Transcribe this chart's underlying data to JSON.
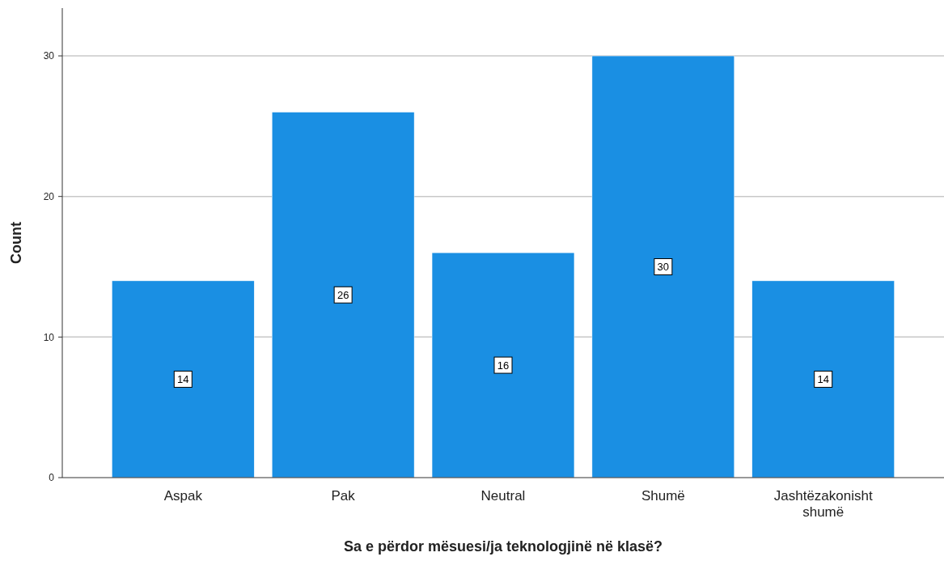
{
  "chart_data": {
    "type": "bar",
    "xlabel": "Sa e përdor mësuesi/ja teknologjinë në klasë?",
    "ylabel": "Count",
    "categories": [
      "Aspak",
      "Pak",
      "Neutral",
      "Shumë",
      "Jashtëzakonisht shumë"
    ],
    "values": [
      14,
      26,
      16,
      30,
      14
    ],
    "color": "#1a8fe3",
    "ylim": [
      0,
      33.4
    ],
    "yticks": [
      0,
      10,
      20,
      30
    ],
    "grid": "y",
    "data_labels": true
  }
}
